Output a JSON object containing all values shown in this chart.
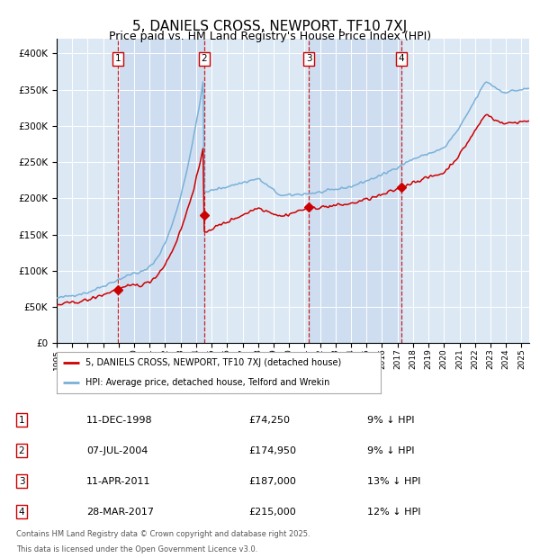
{
  "title": "5, DANIELS CROSS, NEWPORT, TF10 7XJ",
  "subtitle": "Price paid vs. HM Land Registry's House Price Index (HPI)",
  "legend_line1": "5, DANIELS CROSS, NEWPORT, TF10 7XJ (detached house)",
  "legend_line2": "HPI: Average price, detached house, Telford and Wrekin",
  "footer1": "Contains HM Land Registry data © Crown copyright and database right 2025.",
  "footer2": "This data is licensed under the Open Government Licence v3.0.",
  "transactions": [
    {
      "num": 1,
      "date": "11-DEC-1998",
      "price": 74250,
      "pct": "9%",
      "dir": "↓"
    },
    {
      "num": 2,
      "date": "07-JUL-2004",
      "price": 174950,
      "pct": "9%",
      "dir": "↓"
    },
    {
      "num": 3,
      "date": "11-APR-2011",
      "price": 187000,
      "pct": "13%",
      "dir": "↓"
    },
    {
      "num": 4,
      "date": "28-MAR-2017",
      "price": 215000,
      "pct": "12%",
      "dir": "↓"
    }
  ],
  "transaction_dates_decimal": [
    1998.94,
    2004.51,
    2011.27,
    2017.24
  ],
  "transaction_prices": [
    74250,
    174950,
    187000,
    215000
  ],
  "ylim": [
    0,
    420000
  ],
  "xlim_start": 1995.0,
  "xlim_end": 2025.5,
  "background_color": "#ffffff",
  "plot_bg_color": "#dce9f5",
  "grid_color": "#ffffff",
  "hpi_line_color": "#7ab0d8",
  "price_line_color": "#cc0000",
  "vline_color": "#cc0000",
  "marker_color": "#cc0000",
  "title_fontsize": 11,
  "subtitle_fontsize": 9
}
